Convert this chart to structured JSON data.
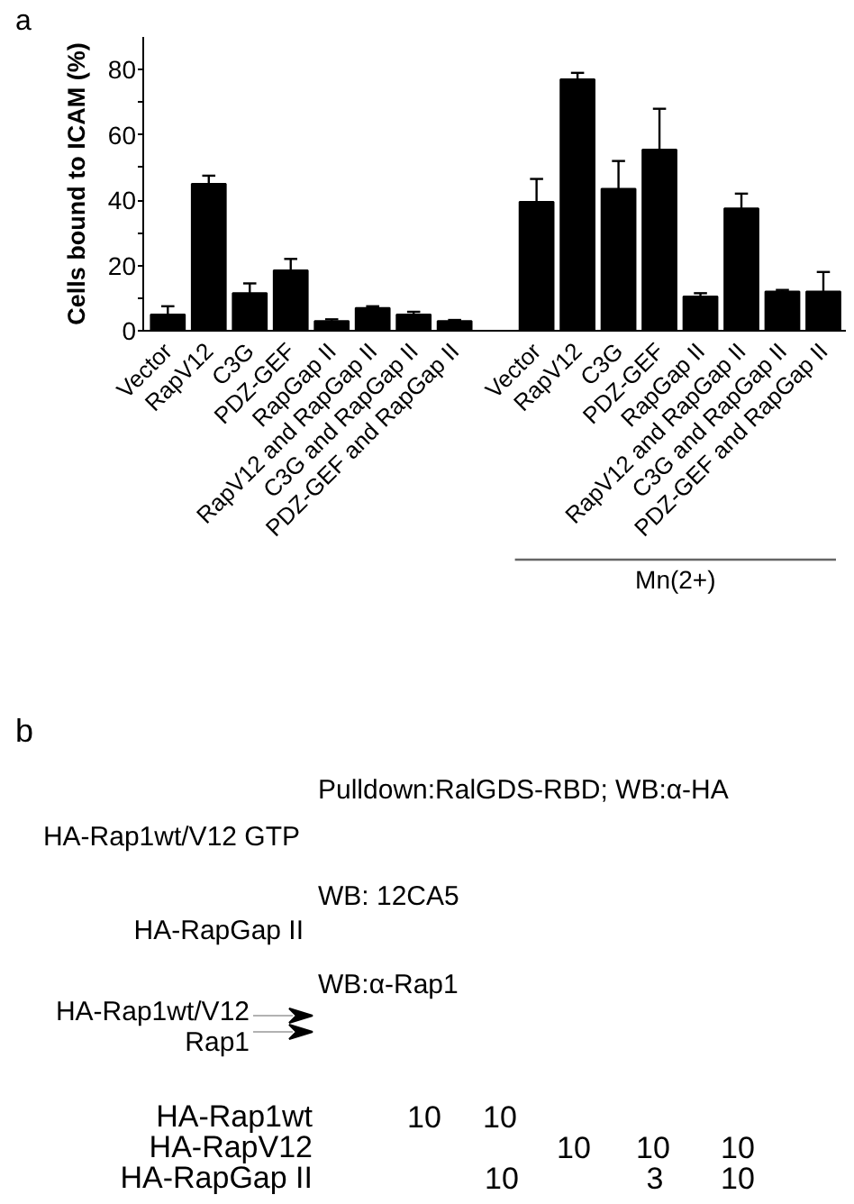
{
  "chart_data": [
    {
      "type": "bar",
      "ylabel": "Cells bound to ICAM (%)",
      "categories": [
        "Vector",
        "RapV12",
        "C3G",
        "PDZ-GEF",
        "RapGap II",
        "RapV12 and RapGap II",
        "C3G and RapGap II",
        "PDZ-GEF and RapGap II",
        null,
        "Vector",
        "RapV12",
        "C3G",
        "PDZ-GEF",
        "RapGap II",
        "RapV12 and RapGap II",
        "C3G and RapGap II",
        "PDZ-GEF and RapGap II"
      ],
      "values": [
        5,
        45,
        11.5,
        18.5,
        3,
        7,
        5,
        3,
        null,
        39.5,
        77,
        43.5,
        55.5,
        10.5,
        37.5,
        12,
        12
      ],
      "errors": [
        [
          5,
          7.5
        ],
        [
          45,
          47.5
        ],
        [
          11.5,
          14.5
        ],
        [
          18.5,
          22
        ],
        [
          3,
          3.5
        ],
        [
          7,
          7.5
        ],
        [
          5,
          5.8
        ],
        [
          3,
          3.3
        ],
        null,
        [
          39.5,
          46.5
        ],
        [
          77,
          79
        ],
        [
          43.5,
          52
        ],
        [
          55.5,
          68
        ],
        [
          10.5,
          11.5
        ],
        [
          37.5,
          42
        ],
        [
          12,
          12.5
        ],
        [
          12,
          18
        ]
      ],
      "color": "#000000",
      "ylim": [
        0,
        90
      ],
      "yticks": [
        0,
        {
          "value": 10,
          "label": null
        },
        20,
        {
          "value": 30,
          "label": null
        },
        40,
        {
          "value": 50,
          "label": null
        },
        60,
        {
          "value": 70,
          "label": null
        },
        80
      ],
      "annotations": [
        "a",
        "Mn(2+)"
      ]
    },
    {
      "type": "other",
      "annotations": [
        "b",
        "Pulldown:RalGDS-RBD; WB:α-HA",
        "HA-Rap1wt/V12 GTP",
        "WB: 12CA5",
        "HA-RapGap II",
        "WB:α-Rap1",
        "HA-Rap1wt/V12",
        "Rap1",
        "HA-Rap1wt",
        "10",
        "10",
        "HA-RapV12",
        "10",
        "10",
        "10",
        "HA-RapGap II",
        "10",
        "3",
        "10"
      ]
    }
  ]
}
